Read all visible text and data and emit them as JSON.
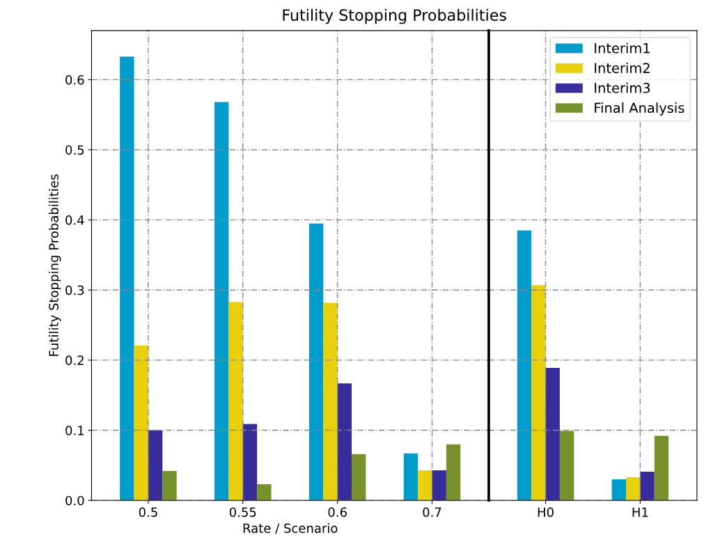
{
  "chart_data": [
    {
      "type": "bar",
      "title": "Futility Stopping Probabilities",
      "xlabel": "Rate / Scenario",
      "ylabel": "Futility Stopping Probabilities",
      "categories": [
        "0.5",
        "0.55",
        "0.6",
        "0.7"
      ],
      "series": [
        {
          "color": "#009ccc",
          "values": [
            0.633,
            0.568,
            0.395,
            0.067
          ]
        },
        {
          "color": "#e8d00a",
          "values": [
            0.221,
            0.283,
            0.282,
            0.043
          ]
        },
        {
          "color": "#372d9a",
          "values": [
            0.1,
            0.109,
            0.167,
            0.043
          ]
        },
        {
          "color": "#77922a",
          "values": [
            0.042,
            0.023,
            0.066,
            0.08
          ]
        }
      ],
      "ylim": [
        0,
        0.67
      ],
      "yticks": [
        {
          "value": 0,
          "label": "0.0"
        },
        0.1,
        0.2,
        0.3,
        0.4,
        0.5,
        0.6
      ],
      "grid": true
    },
    {
      "type": "bar",
      "categories": [
        "H0",
        "H1"
      ],
      "series": [
        {
          "name": "Interim1",
          "color": "#009ccc",
          "values": [
            0.385,
            0.03
          ]
        },
        {
          "name": "Interim2",
          "color": "#e8d00a",
          "values": [
            0.307,
            0.033
          ]
        },
        {
          "name": "Interim3",
          "color": "#372d9a",
          "values": [
            0.189,
            0.041
          ]
        },
        {
          "name": "Final Analysis",
          "color": "#77922a",
          "values": [
            0.099,
            0.092
          ]
        }
      ],
      "ylim": [
        0,
        0.67
      ],
      "yticks": [
        0,
        0.1,
        0.2,
        0.3,
        0.4,
        0.5,
        0.6
      ],
      "tick_labels": "x",
      "grid": true,
      "legend": "top right"
    }
  ]
}
